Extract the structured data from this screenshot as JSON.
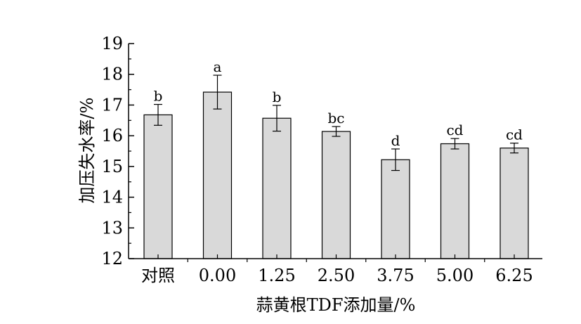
{
  "chart_data": {
    "type": "bar",
    "xlabel": "蒜黄根TDF添加量/%",
    "ylabel": "加压失水率/%",
    "ylim": [
      12,
      19
    ],
    "yticks": [
      12,
      13,
      14,
      15,
      16,
      17,
      18,
      19
    ],
    "categories": [
      "对照",
      "0.00",
      "1.25",
      "2.50",
      "3.75",
      "5.00",
      "6.25"
    ],
    "values": [
      16.68,
      17.42,
      16.57,
      16.14,
      15.22,
      15.74,
      15.6
    ],
    "errors": [
      0.34,
      0.55,
      0.42,
      0.16,
      0.35,
      0.17,
      0.16
    ],
    "significance": [
      "b",
      "a",
      "b",
      "bc",
      "d",
      "cd",
      "cd"
    ],
    "grid": false,
    "bar_color": "#d9d9d9"
  }
}
